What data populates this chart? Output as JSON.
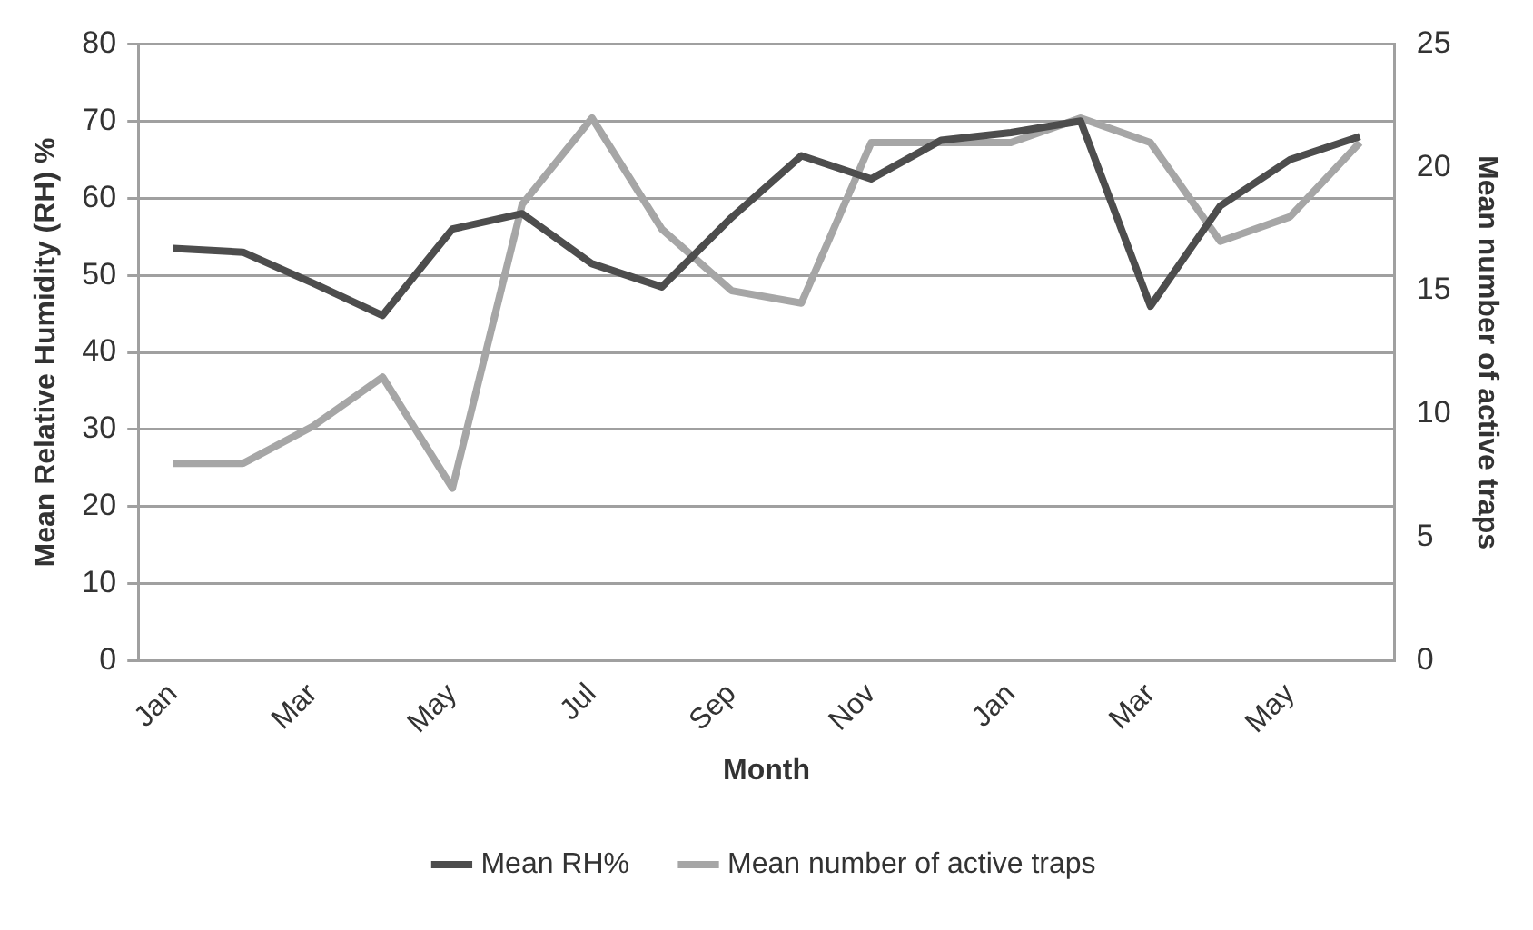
{
  "chart_data": {
    "type": "line",
    "xlabel": "Month",
    "ylabel": "Mean Relative Humidity (RH) %",
    "y2label": "Mean number of active traps",
    "categories": [
      "Jan",
      null,
      "Mar",
      null,
      "May",
      null,
      "Jul",
      null,
      "Sep",
      null,
      "Nov",
      null,
      "Jan",
      null,
      "Mar",
      null,
      "May",
      null
    ],
    "series": [
      {
        "name": "Mean RH%",
        "color": "#4d4d4d",
        "values": [
          53.5,
          53,
          49,
          44.8,
          56,
          58,
          51.5,
          48.5,
          57.5,
          65.5,
          62.5,
          67.5,
          68.5,
          70,
          46,
          59,
          65,
          68
        ]
      },
      {
        "name": "Mean number of active traps",
        "color": "#a6a6a6",
        "axis": "y2",
        "values": [
          8,
          8,
          9.5,
          11.5,
          7,
          18.5,
          22,
          17.5,
          15,
          14.5,
          21,
          21,
          21,
          22,
          21,
          17,
          18,
          21
        ]
      }
    ],
    "ylim": [
      0,
      80
    ],
    "yticks": [
      0,
      10,
      20,
      30,
      40,
      50,
      60,
      70,
      80
    ],
    "y2lim": [
      0,
      25
    ],
    "y2ticks": [
      0,
      5,
      10,
      15,
      20,
      25
    ],
    "grid": "y",
    "legend": "bottom",
    "marker": "none",
    "line_style": "solid"
  }
}
